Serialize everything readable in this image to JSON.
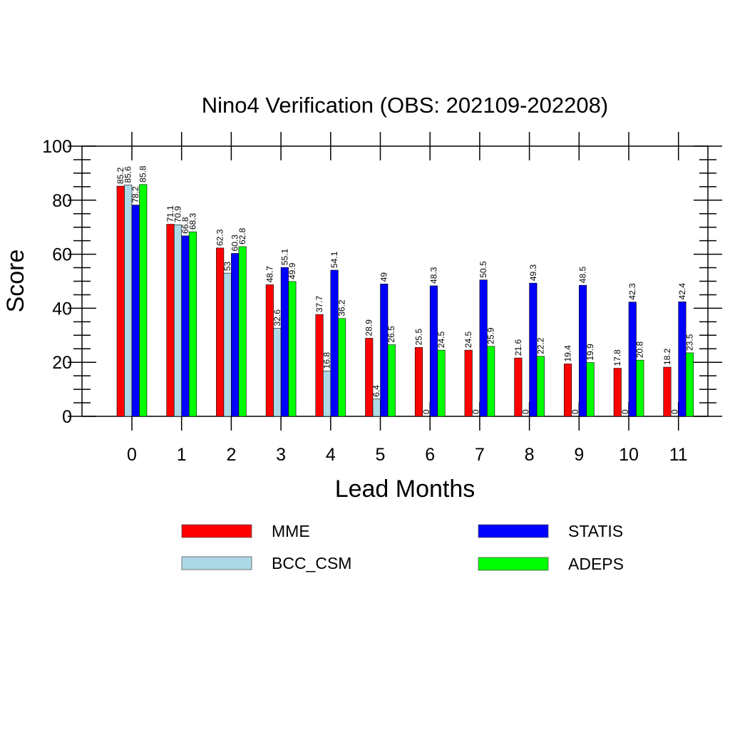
{
  "chart_data": {
    "type": "bar",
    "title": "Nino4 Verification (OBS: 202109-202208)",
    "xlabel": "Lead Months",
    "ylabel": "Score",
    "ylim": [
      0,
      100
    ],
    "yticks": [
      "0",
      "20",
      "40",
      "60",
      "80",
      "100"
    ],
    "categories": [
      "0",
      "1",
      "2",
      "3",
      "4",
      "5",
      "6",
      "7",
      "8",
      "9",
      "10",
      "11"
    ],
    "series": [
      {
        "name": "MME",
        "color": "#ff0000",
        "values": [
          85.2,
          71.1,
          62.3,
          48.7,
          37.7,
          28.9,
          25.5,
          24.5,
          21.6,
          19.4,
          17.8,
          18.2
        ]
      },
      {
        "name": "BCC_CSM",
        "color": "#add8e6",
        "values": [
          85.6,
          70.9,
          53,
          32.6,
          16.8,
          6.4,
          0,
          0,
          0,
          0,
          0,
          0
        ]
      },
      {
        "name": "STATIS",
        "color": "#0000ff",
        "values": [
          78.2,
          66.8,
          60.3,
          55.1,
          54.1,
          49,
          48.3,
          50.5,
          49.3,
          48.5,
          42.3,
          42.4
        ]
      },
      {
        "name": "ADEPS",
        "color": "#00ff00",
        "values": [
          85.8,
          68.3,
          62.8,
          49.9,
          36.2,
          26.5,
          24.5,
          25.9,
          22.2,
          19.9,
          20.8,
          23.5
        ]
      }
    ],
    "legend_position": "bottom",
    "grid": false
  }
}
